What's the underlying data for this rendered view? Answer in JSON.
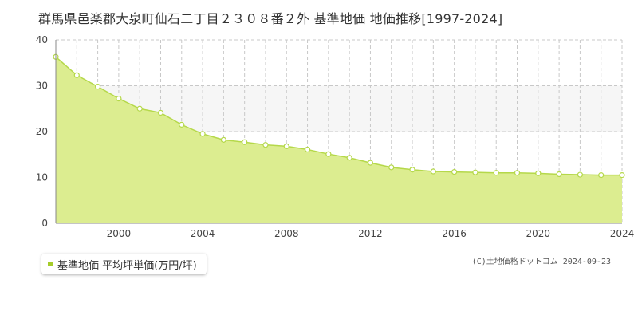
{
  "chart_data": {
    "type": "area",
    "title": "群馬県邑楽郡大泉町仙石二丁目２３０８番２外 基準地価 地価推移[1997-2024]",
    "x": [
      1997,
      1998,
      1999,
      2000,
      2001,
      2002,
      2003,
      2004,
      2005,
      2006,
      2007,
      2008,
      2009,
      2010,
      2011,
      2012,
      2013,
      2014,
      2015,
      2016,
      2017,
      2018,
      2019,
      2020,
      2021,
      2022,
      2023,
      2024
    ],
    "series": [
      {
        "name": "基準地価 平均坪単価(万円/坪)",
        "values": [
          36.3,
          32.3,
          29.8,
          27.2,
          25.0,
          24.1,
          21.5,
          19.5,
          18.2,
          17.7,
          17.1,
          16.8,
          16.1,
          15.1,
          14.3,
          13.2,
          12.2,
          11.7,
          11.3,
          11.2,
          11.1,
          11.0,
          11.0,
          10.9,
          10.7,
          10.6,
          10.5,
          10.5
        ]
      }
    ],
    "xticks": [
      "2000",
      "2004",
      "2008",
      "2012",
      "2016",
      "2020",
      "2024"
    ],
    "yticks": [
      "0",
      "10",
      "20",
      "30",
      "40"
    ],
    "xlim": [
      1997,
      2024
    ],
    "ylim": [
      0,
      40
    ],
    "grid": true,
    "legend_position": "bottom-left",
    "colors": {
      "fill": "#dced90",
      "line": "#b5d84a",
      "marker_stroke": "#b5d84a",
      "legend_swatch": "#a5cc2a"
    }
  },
  "copyright": "(C)土地価格ドットコム 2024-09-23"
}
